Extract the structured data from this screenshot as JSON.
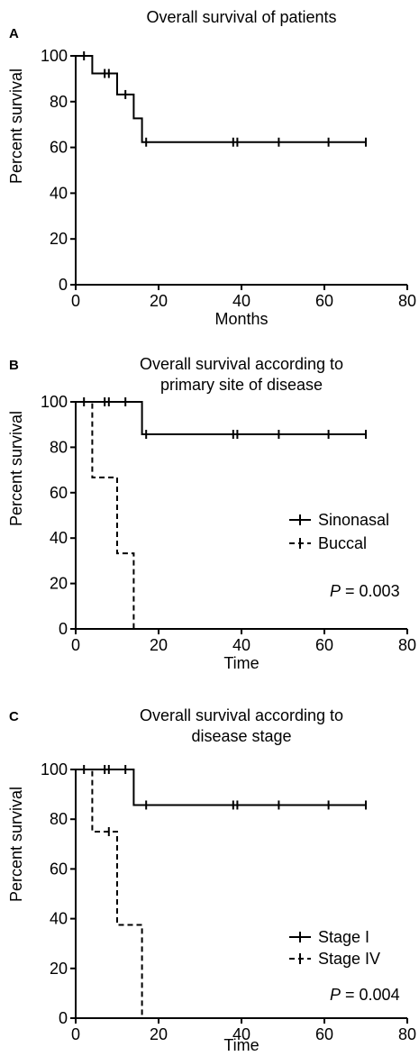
{
  "chart_data": [
    {
      "type": "line",
      "subtype": "kaplan-meier",
      "panel_label": "A",
      "title": [
        "Overall survival of patients"
      ],
      "xlabel": "Months",
      "ylabel": "Percent survival",
      "xlim": [
        0,
        80
      ],
      "ylim": [
        0,
        100
      ],
      "xticks": [
        0,
        20,
        40,
        60,
        80
      ],
      "yticks": [
        0,
        20,
        40,
        60,
        80,
        100
      ],
      "grid": false,
      "legend": null,
      "annotation": null,
      "series": [
        {
          "name": "",
          "style": "solid",
          "x": [
            0,
            4,
            4,
            10,
            10,
            14,
            14,
            16,
            16,
            70
          ],
          "y": [
            100,
            100,
            92.3,
            92.3,
            83.1,
            83.1,
            72.7,
            72.7,
            62.3,
            62.3
          ],
          "censor_x": [
            2,
            7,
            8,
            12,
            17,
            38,
            39,
            49,
            61,
            70
          ]
        }
      ]
    },
    {
      "type": "line",
      "subtype": "kaplan-meier",
      "panel_label": "B",
      "title": [
        "Overall survival according to",
        "primary site of disease"
      ],
      "xlabel": "Time",
      "ylabel": "Percent survival",
      "xlim": [
        0,
        80
      ],
      "ylim": [
        0,
        100
      ],
      "xticks": [
        0,
        20,
        40,
        60,
        80
      ],
      "yticks": [
        0,
        20,
        40,
        60,
        80,
        100
      ],
      "grid": false,
      "legend": "right",
      "annotation": {
        "p_label": "P",
        "p_value": " = 0.003"
      },
      "series": [
        {
          "name": "Sinonasal",
          "style": "solid",
          "x": [
            0,
            16,
            16,
            70
          ],
          "y": [
            100,
            100,
            85.7,
            85.7
          ],
          "censor_x": [
            2,
            7,
            8,
            12,
            17,
            38,
            39,
            49,
            61,
            70
          ]
        },
        {
          "name": "Buccal",
          "style": "dashed",
          "x": [
            0,
            4,
            4,
            10,
            10,
            14,
            14,
            70
          ],
          "y": [
            100,
            100,
            66.7,
            66.7,
            33.3,
            33.3,
            0,
            0
          ],
          "censor_x": []
        }
      ]
    },
    {
      "type": "line",
      "subtype": "kaplan-meier",
      "panel_label": "C",
      "title": [
        "Overall survival according to",
        "disease stage"
      ],
      "xlabel": "Time",
      "ylabel": "Percent survival",
      "xlim": [
        0,
        80
      ],
      "ylim": [
        0,
        100
      ],
      "xticks": [
        0,
        20,
        40,
        60,
        80
      ],
      "yticks": [
        0,
        20,
        40,
        60,
        80,
        100
      ],
      "grid": false,
      "legend": "right",
      "annotation": {
        "p_label": "P",
        "p_value": " = 0.004"
      },
      "series": [
        {
          "name": "Stage I",
          "style": "solid",
          "x": [
            0,
            14,
            14,
            70
          ],
          "y": [
            100,
            100,
            85.7,
            85.7
          ],
          "censor_x": [
            2,
            7,
            8,
            12,
            17,
            38,
            39,
            49,
            61,
            70
          ]
        },
        {
          "name": "Stage IV",
          "style": "dashed",
          "x": [
            0,
            4,
            4,
            10,
            10,
            16,
            16
          ],
          "y": [
            100,
            100,
            75,
            75,
            37.5,
            37.5,
            0
          ],
          "censor_x": [
            8
          ]
        }
      ]
    }
  ]
}
